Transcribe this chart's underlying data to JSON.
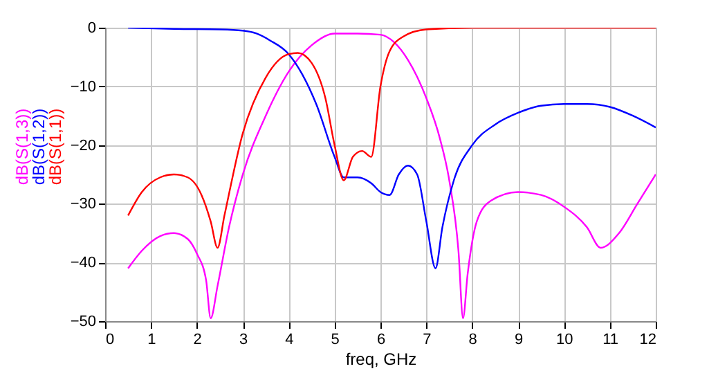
{
  "chart_data": {
    "type": "line",
    "xlabel": "freq, GHz",
    "xlim": [
      0,
      12
    ],
    "xticks": [
      0,
      1,
      2,
      3,
      4,
      5,
      6,
      7,
      8,
      9,
      10,
      11,
      12
    ],
    "ylim": [
      -50,
      0
    ],
    "yticks": [
      -50,
      -40,
      -30,
      -20,
      -10,
      0
    ],
    "grid": true,
    "legend": "left",
    "marker": "none",
    "line_style": "solid",
    "series": [
      {
        "name": "dB(S(1,3))",
        "color": "#ff00ff",
        "x": [
          0.5,
          0.8,
          1.2,
          1.5,
          1.8,
          2.0,
          2.2,
          2.3,
          2.45,
          2.7,
          3.0,
          3.5,
          4.0,
          4.5,
          5.0,
          5.5,
          6.0,
          6.3,
          6.6,
          7.0,
          7.3,
          7.5,
          7.7,
          7.8,
          7.9,
          8.1,
          8.4,
          9.0,
          9.5,
          10.0,
          10.5,
          10.8,
          11.2,
          11.6,
          12.0
        ],
        "values": [
          -41,
          -38,
          -35.5,
          -35,
          -36,
          -38.5,
          -43,
          -49.5,
          -44,
          -34,
          -25,
          -15,
          -7.5,
          -3,
          -1,
          -1,
          -1.2,
          -2.5,
          -5.5,
          -12,
          -19,
          -26,
          -38,
          -49.5,
          -42,
          -33,
          -29.5,
          -28,
          -28.5,
          -30.5,
          -34,
          -37.5,
          -35,
          -30,
          -25
        ]
      },
      {
        "name": "dB(S(1,2))",
        "color": "#0000ff",
        "x": [
          0.5,
          1.5,
          2.5,
          3.0,
          3.3,
          3.6,
          4.0,
          4.3,
          4.6,
          5.0,
          5.2,
          5.5,
          5.8,
          6.0,
          6.2,
          6.4,
          6.6,
          6.8,
          7.0,
          7.2,
          7.35,
          7.6,
          8.0,
          8.5,
          9.0,
          9.5,
          10.0,
          10.5,
          11.0,
          11.5,
          12.0
        ],
        "values": [
          0,
          -0.2,
          -0.3,
          -0.5,
          -1,
          -2.2,
          -4.5,
          -8,
          -13,
          -22,
          -25.5,
          -25.5,
          -26.5,
          -28,
          -28.5,
          -25,
          -23.5,
          -25,
          -33,
          -41,
          -34,
          -26,
          -20,
          -16.5,
          -14.5,
          -13.3,
          -13,
          -13,
          -13.5,
          -15,
          -17
        ]
      },
      {
        "name": "dB(S(1,1))",
        "color": "#ff0000",
        "x": [
          0.5,
          0.8,
          1.2,
          1.5,
          1.8,
          2.1,
          2.3,
          2.45,
          2.6,
          3.0,
          3.5,
          4.0,
          4.2,
          4.5,
          4.8,
          5.0,
          5.2,
          5.4,
          5.6,
          5.8,
          6.0,
          6.2,
          6.5,
          7.0,
          8.0,
          10.0,
          12.0
        ],
        "values": [
          -32,
          -28,
          -25.5,
          -25,
          -25.5,
          -28.5,
          -33,
          -37.5,
          -32,
          -18,
          -8.5,
          -4.5,
          -4.3,
          -6,
          -12,
          -20,
          -26,
          -22,
          -21,
          -22,
          -10,
          -4,
          -1.5,
          -0.3,
          0,
          0,
          0
        ]
      }
    ]
  }
}
